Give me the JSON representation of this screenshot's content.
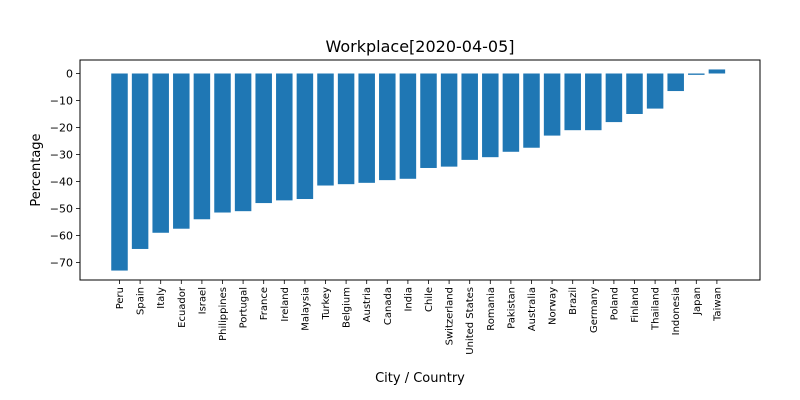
{
  "chart_data": {
    "type": "bar",
    "title": "Workplace[2020-04-05]",
    "xlabel": "City / Country",
    "ylabel": "Percentage",
    "categories": [
      "Peru",
      "Spain",
      "Italy",
      "Ecuador",
      "Israel",
      "Philippines",
      "Portugal",
      "France",
      "Ireland",
      "Malaysia",
      "Turkey",
      "Belgium",
      "Austria",
      "Canada",
      "India",
      "Chile",
      "Switzerland",
      "United States",
      "Romania",
      "Pakistan",
      "Australia",
      "Norway",
      "Brazil",
      "Germany",
      "Poland",
      "Finland",
      "Thailand",
      "Indonesia",
      "Japan",
      "Taiwan"
    ],
    "values": [
      -73,
      -65,
      -59,
      -57.5,
      -54,
      -51.5,
      -51,
      -48,
      -47,
      -46.5,
      -41.5,
      -41,
      -40.5,
      -39.5,
      -39,
      -35,
      -34.5,
      -32,
      -31,
      -29,
      -27.5,
      -23,
      -21,
      -21,
      -18,
      -15,
      -13,
      -6.5,
      -0.5,
      1.5
    ],
    "yticks": [
      0,
      -10,
      -20,
      -30,
      -40,
      -50,
      -60,
      -70
    ],
    "ylim": [
      -76.5,
      5
    ],
    "bar_color": "#1f77b4",
    "grid": false,
    "legend": "none"
  }
}
